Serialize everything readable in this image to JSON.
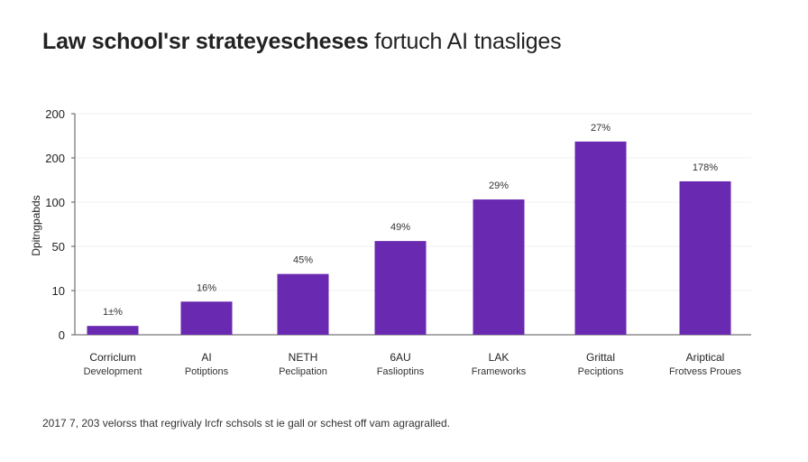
{
  "title": {
    "bold": "Law school'sr strateyescheses",
    "regular": "fortuch AI tnasliges"
  },
  "footnote": "2017 7, 203 velorss that regrivaly lrcfr schsols st ie gall or schest off vam agragralled.",
  "chart_data": {
    "type": "bar",
    "title": "Law school'sr strateyescheses fortuch AI tnasliges",
    "ylabel": "Dpitngpabds",
    "xlabel": "",
    "yticks": [
      "0",
      "10",
      "50",
      "100",
      "200",
      "200"
    ],
    "categories": [
      [
        "Corriclum",
        "Development"
      ],
      [
        "AI",
        "Potiptions"
      ],
      [
        "NETH",
        "Peclipation"
      ],
      [
        "6AU",
        "Faslioptins"
      ],
      [
        "LAK",
        "Frameworks"
      ],
      [
        "Grittal",
        "Peciptions"
      ],
      [
        "Ariptical",
        "Frotvess Proues"
      ]
    ],
    "values": [
      2,
      7.5,
      25,
      56,
      106,
      237,
      147
    ],
    "data_labels": [
      "1±%",
      "16%",
      "45%",
      "49%",
      "29%",
      "27%",
      "178%"
    ],
    "bar_color": "#6929B0",
    "grid": true,
    "legend": "none"
  }
}
